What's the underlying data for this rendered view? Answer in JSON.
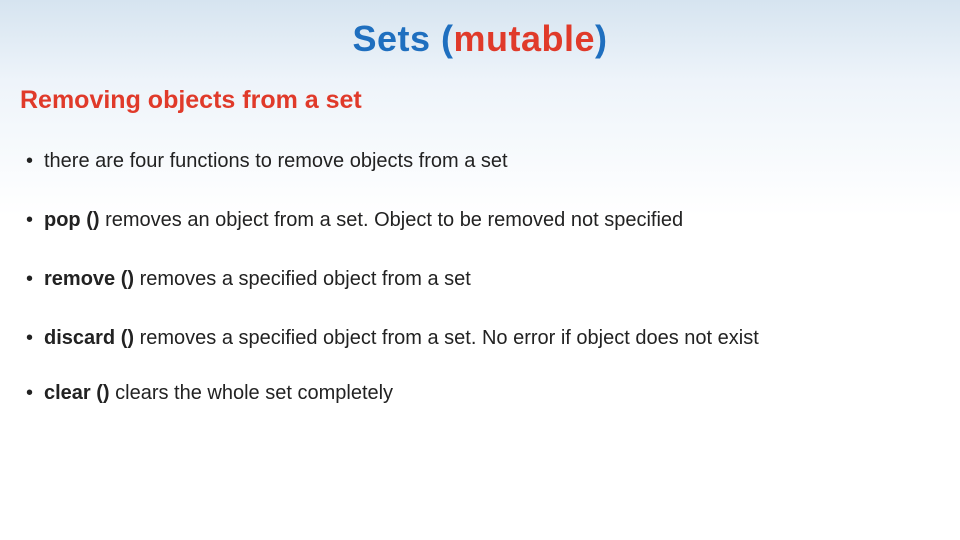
{
  "title": {
    "word1": "Sets",
    "paren_open": "(",
    "word2": "mutable",
    "paren_close": ")",
    "color_blue": "#1f6fbf",
    "color_red": "#e03a2a",
    "fontsize": 36
  },
  "subtitle": {
    "text": "Removing objects from a set",
    "color": "#e03a2a",
    "fontsize": 25
  },
  "bullets": [
    {
      "keyword": "",
      "text": "there are four functions to remove objects from a set"
    },
    {
      "keyword": "pop ()",
      "text": " removes an object from a set. Object to be removed not specified"
    },
    {
      "keyword": "remove ()",
      "text": " removes a specified object from a set"
    },
    {
      "keyword": "discard ()",
      "text": " removes a specified object from a set. No error if object does not exist"
    },
    {
      "keyword": "clear ()",
      "text": " clears the whole set completely"
    }
  ],
  "style": {
    "body_fontsize": 20,
    "text_color": "#222222",
    "background_gradient_top": "#d6e4f0",
    "background_gradient_bottom": "#ffffff",
    "font_family": "Verdana"
  }
}
